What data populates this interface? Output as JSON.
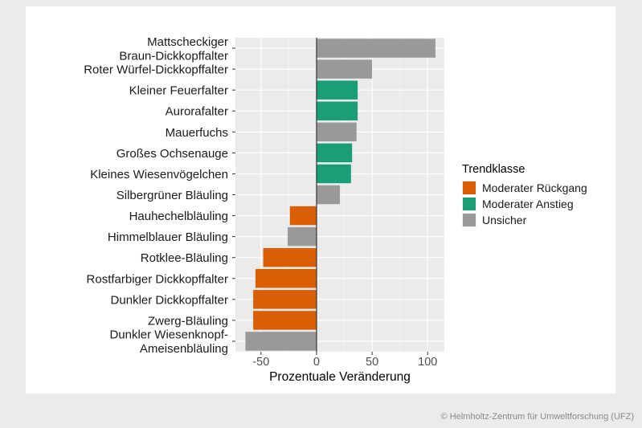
{
  "chart_data": {
    "type": "bar",
    "orientation": "horizontal",
    "title": "",
    "xlabel": "Prozentuale Veränderung",
    "ylabel": "",
    "xlim": [
      -73,
      115
    ],
    "xticks": [
      -50,
      0,
      50,
      100
    ],
    "grid": true,
    "legend": {
      "title": "Trendklasse",
      "placement": "right",
      "entries": [
        {
          "name": "Moderater Rückgang",
          "color": "#d95f02"
        },
        {
          "name": "Moderater Anstieg",
          "color": "#1b9e77"
        },
        {
          "name": "Unsicher",
          "color": "#999999"
        }
      ]
    },
    "categories": [
      [
        "Mattscheckiger",
        "Braun-Dickkopffalter"
      ],
      [
        "Roter Würfel-Dickkopffalter"
      ],
      [
        "Kleiner Feuerfalter"
      ],
      [
        "Aurorafalter"
      ],
      [
        "Mauerfuchs"
      ],
      [
        "Großes Ochsenauge"
      ],
      [
        "Kleines Wiesenvögelchen"
      ],
      [
        "Silbergrüner Bläuling"
      ],
      [
        "Hauhechelbläuling"
      ],
      [
        "Himmelblauer Bläuling"
      ],
      [
        "Rotklee-Bläuling"
      ],
      [
        "Rostfarbiger Dickkopffalter"
      ],
      [
        "Dunkler Dickkopffalter"
      ],
      [
        "Zwerg-Bläuling"
      ],
      [
        "Dunkler Wiesenknopf-",
        "Ameisenbläuling"
      ]
    ],
    "values": [
      107,
      50,
      37,
      37,
      36,
      32,
      31,
      21,
      -24,
      -26,
      -48,
      -55,
      -57,
      -57,
      -64
    ],
    "classes": [
      2,
      2,
      1,
      1,
      2,
      1,
      1,
      2,
      0,
      2,
      0,
      0,
      0,
      0,
      2
    ]
  },
  "copyright": "© Helmholtz-Zentrum für Umweltforschung (UFZ)"
}
